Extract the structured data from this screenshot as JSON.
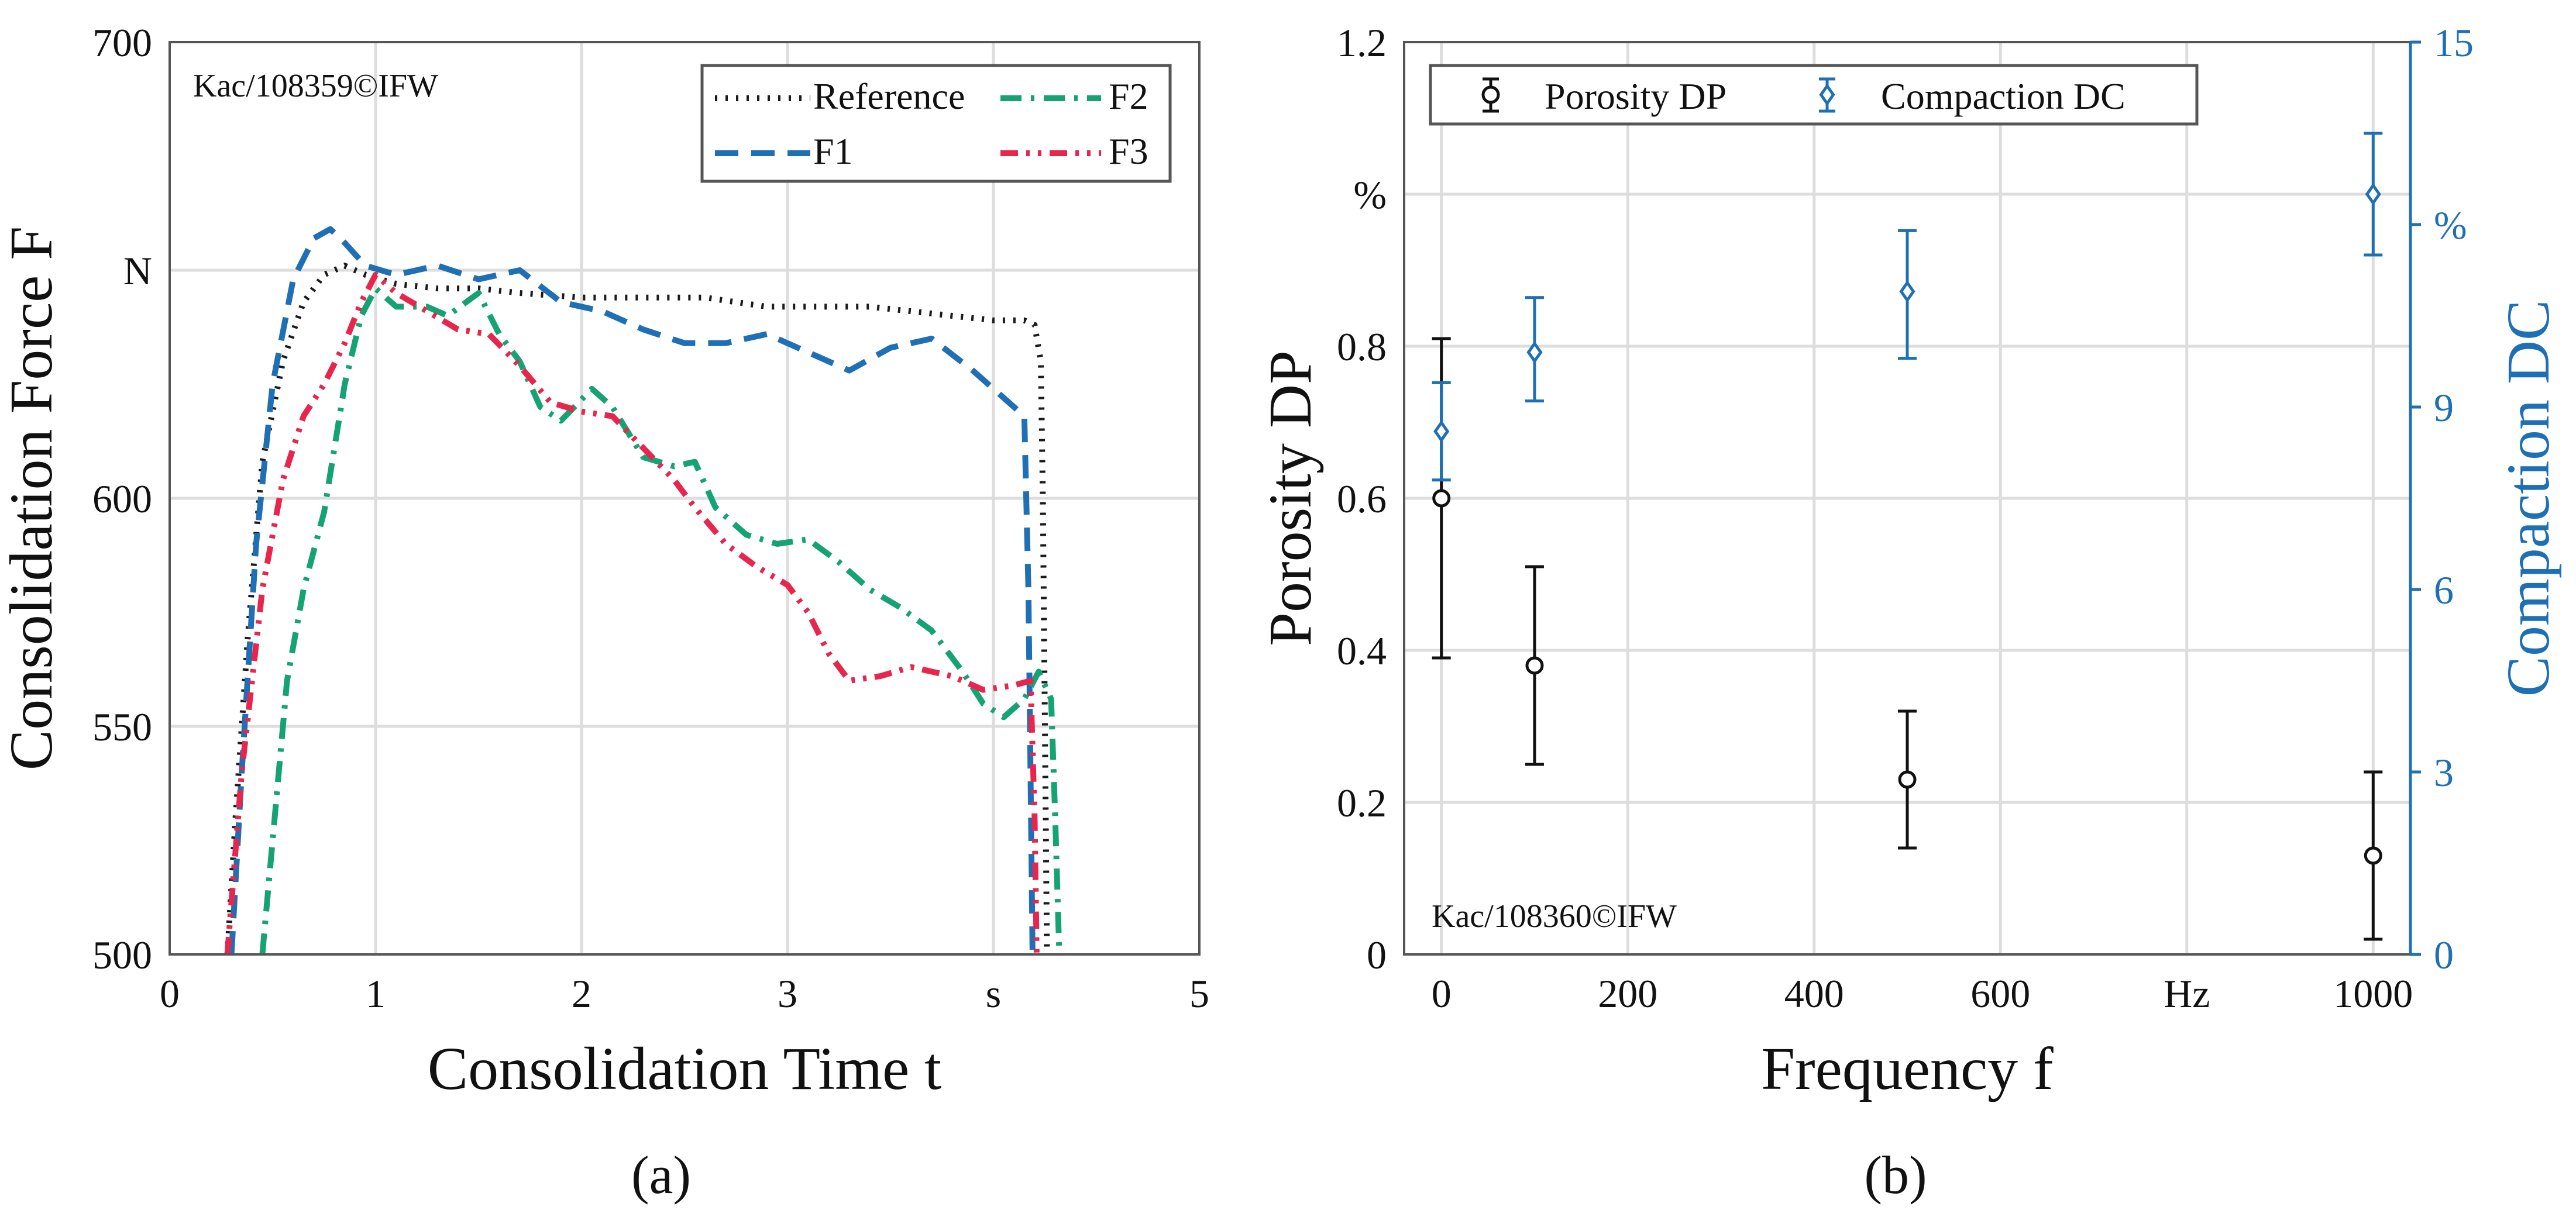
{
  "colors": {
    "reference": "#1a1a1a",
    "f1": "#1f6fb5",
    "f2": "#16a373",
    "f3": "#e8264d",
    "porosity": "#111111",
    "compaction": "#1f6fb5",
    "grid": "#dddddd",
    "axis": "#555555"
  },
  "chart_data": [
    {
      "panel": "a",
      "type": "line",
      "caption": "(a)",
      "watermark": "Kac/108359©IFW",
      "xlabel": "Consolidation Time t",
      "ylabel": "Consolidation Force F",
      "xlim": [
        0,
        5
      ],
      "ylim": [
        500,
        700
      ],
      "xticks": [
        0,
        1,
        2,
        3,
        4,
        5
      ],
      "yticks": [
        500,
        550,
        600,
        650,
        700
      ],
      "xtick_labels": [
        "0",
        "1",
        "2",
        "3",
        "s",
        "5"
      ],
      "ytick_labels": [
        "500",
        "550",
        "600",
        "N",
        "700"
      ],
      "grid": true,
      "legend": "top-right",
      "series": [
        {
          "name": "Reference",
          "key": "reference",
          "dash": "dot",
          "points": [
            [
              0.28,
              500
            ],
            [
              0.32,
              530
            ],
            [
              0.38,
              570
            ],
            [
              0.45,
              608
            ],
            [
              0.55,
              630
            ],
            [
              0.65,
              643
            ],
            [
              0.75,
              649
            ],
            [
              0.85,
              651
            ],
            [
              0.95,
              649
            ],
            [
              1.1,
              647
            ],
            [
              1.3,
              646
            ],
            [
              1.5,
              646
            ],
            [
              1.7,
              645
            ],
            [
              2.0,
              644
            ],
            [
              2.3,
              644
            ],
            [
              2.6,
              644
            ],
            [
              2.9,
              642
            ],
            [
              3.1,
              642
            ],
            [
              3.4,
              642
            ],
            [
              3.6,
              641
            ],
            [
              3.8,
              640
            ],
            [
              4.0,
              639
            ],
            [
              4.15,
              639
            ],
            [
              4.2,
              638
            ],
            [
              4.23,
              630
            ],
            [
              4.24,
              600
            ],
            [
              4.25,
              550
            ],
            [
              4.26,
              500
            ]
          ]
        },
        {
          "name": "F1",
          "key": "f1",
          "dash": "dash",
          "points": [
            [
              0.3,
              500
            ],
            [
              0.35,
              540
            ],
            [
              0.42,
              590
            ],
            [
              0.5,
              625
            ],
            [
              0.6,
              648
            ],
            [
              0.7,
              657
            ],
            [
              0.78,
              659
            ],
            [
              0.85,
              656
            ],
            [
              0.95,
              651
            ],
            [
              1.1,
              649
            ],
            [
              1.3,
              651
            ],
            [
              1.5,
              648
            ],
            [
              1.7,
              650
            ],
            [
              1.9,
              643
            ],
            [
              2.1,
              641
            ],
            [
              2.3,
              637
            ],
            [
              2.5,
              634
            ],
            [
              2.7,
              634
            ],
            [
              2.9,
              636
            ],
            [
              3.1,
              632
            ],
            [
              3.3,
              628
            ],
            [
              3.5,
              633
            ],
            [
              3.7,
              635
            ],
            [
              3.9,
              628
            ],
            [
              4.05,
              622
            ],
            [
              4.15,
              618
            ],
            [
              4.17,
              580
            ],
            [
              4.18,
              540
            ],
            [
              4.19,
              500
            ]
          ]
        },
        {
          "name": "F2",
          "key": "f2",
          "dash": "dashdot",
          "points": [
            [
              0.45,
              500
            ],
            [
              0.5,
              525
            ],
            [
              0.57,
              560
            ],
            [
              0.65,
              580
            ],
            [
              0.75,
              597
            ],
            [
              0.85,
              625
            ],
            [
              0.93,
              640
            ],
            [
              1.0,
              646
            ],
            [
              1.1,
              642
            ],
            [
              1.25,
              642
            ],
            [
              1.35,
              640
            ],
            [
              1.5,
              645
            ],
            [
              1.6,
              636
            ],
            [
              1.7,
              630
            ],
            [
              1.8,
              620
            ],
            [
              1.9,
              617
            ],
            [
              2.05,
              624
            ],
            [
              2.15,
              620
            ],
            [
              2.3,
              609
            ],
            [
              2.45,
              607
            ],
            [
              2.55,
              608
            ],
            [
              2.65,
              598
            ],
            [
              2.8,
              592
            ],
            [
              2.95,
              590
            ],
            [
              3.1,
              591
            ],
            [
              3.25,
              586
            ],
            [
              3.4,
              580
            ],
            [
              3.55,
              576
            ],
            [
              3.7,
              571
            ],
            [
              3.85,
              562
            ],
            [
              3.95,
              555
            ],
            [
              4.05,
              552
            ],
            [
              4.15,
              556
            ],
            [
              4.22,
              562
            ],
            [
              4.28,
              556
            ],
            [
              4.3,
              530
            ],
            [
              4.32,
              500
            ]
          ]
        },
        {
          "name": "F3",
          "key": "f3",
          "dash": "dashdotdot",
          "points": [
            [
              0.28,
              500
            ],
            [
              0.35,
              540
            ],
            [
              0.45,
              580
            ],
            [
              0.55,
              604
            ],
            [
              0.65,
              618
            ],
            [
              0.75,
              625
            ],
            [
              0.85,
              634
            ],
            [
              0.93,
              643
            ],
            [
              1.0,
              649
            ],
            [
              1.1,
              645
            ],
            [
              1.25,
              641
            ],
            [
              1.4,
              637
            ],
            [
              1.55,
              636
            ],
            [
              1.7,
              629
            ],
            [
              1.85,
              621
            ],
            [
              2.0,
              619
            ],
            [
              2.15,
              618
            ],
            [
              2.3,
              611
            ],
            [
              2.45,
              604
            ],
            [
              2.55,
              598
            ],
            [
              2.7,
              590
            ],
            [
              2.85,
              585
            ],
            [
              3.0,
              581
            ],
            [
              3.1,
              575
            ],
            [
              3.2,
              566
            ],
            [
              3.3,
              560
            ],
            [
              3.45,
              561
            ],
            [
              3.6,
              563
            ],
            [
              3.8,
              561
            ],
            [
              3.95,
              558
            ],
            [
              4.1,
              559
            ],
            [
              4.18,
              560
            ],
            [
              4.2,
              530
            ],
            [
              4.21,
              500
            ]
          ]
        }
      ]
    },
    {
      "panel": "b",
      "type": "scatter",
      "caption": "(b)",
      "watermark": "Kac/108360©IFW",
      "xlabel": "Frequency f",
      "ylabel": "Porosity DP",
      "y2label": "Compaction DC",
      "xlim": [
        -40,
        1040
      ],
      "ylim": [
        0,
        1.2
      ],
      "y2lim": [
        0,
        15
      ],
      "xticks": [
        0,
        200,
        400,
        600,
        800,
        1000
      ],
      "xtick_labels": [
        "0",
        "200",
        "400",
        "600",
        "Hz",
        "1000"
      ],
      "yticks": [
        0,
        0.2,
        0.4,
        0.6,
        0.8,
        1.0,
        1.2
      ],
      "ytick_labels": [
        "0",
        "0.2",
        "0.4",
        "0.6",
        "0.8",
        "%",
        "1.2"
      ],
      "y2ticks": [
        0,
        3,
        6,
        9,
        12,
        15
      ],
      "y2tick_labels": [
        "0",
        "3",
        "6",
        "9",
        "%",
        "15"
      ],
      "grid": true,
      "legend": "top-left",
      "series": [
        {
          "name": "Porosity DP",
          "key": "porosity",
          "marker": "circle",
          "axis": "left",
          "x": [
            0,
            100,
            500,
            1000
          ],
          "y": [
            0.6,
            0.38,
            0.23,
            0.13
          ],
          "err_low": [
            0.39,
            0.25,
            0.14,
            0.02
          ],
          "err_high": [
            0.81,
            0.51,
            0.32,
            0.24
          ]
        },
        {
          "name": "Compaction DC",
          "key": "compaction",
          "marker": "diamond",
          "axis": "right",
          "x": [
            0,
            100,
            500,
            1000
          ],
          "y": [
            8.6,
            9.9,
            10.9,
            12.5
          ],
          "err_low": [
            7.8,
            9.1,
            9.8,
            11.5
          ],
          "err_high": [
            9.4,
            10.8,
            11.9,
            13.5
          ]
        }
      ]
    }
  ]
}
